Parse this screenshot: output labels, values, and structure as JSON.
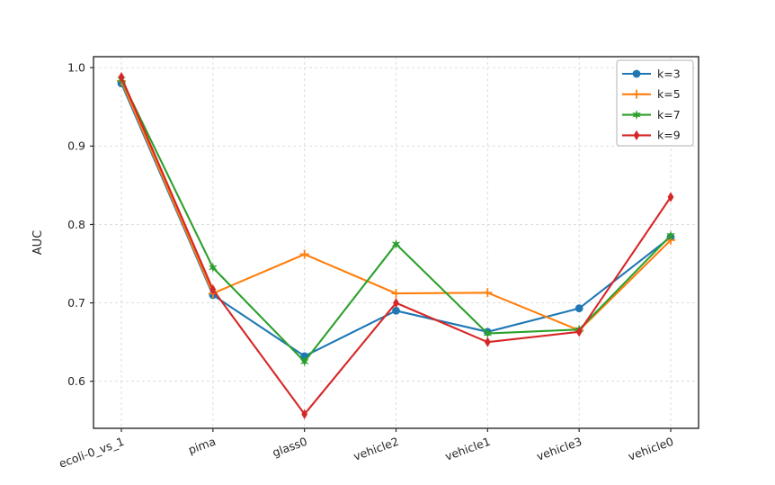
{
  "chart_data": {
    "type": "line",
    "title": "",
    "xlabel": "",
    "ylabel": "AUC",
    "categories": [
      "ecoli-0_vs_1",
      "pima",
      "glass0",
      "vehicle2",
      "vehicle1",
      "vehicle3",
      "vehicle0"
    ],
    "series": [
      {
        "name": "k=3",
        "color": "#1f77b4",
        "marker": "circle",
        "values": [
          0.98,
          0.71,
          0.632,
          0.69,
          0.663,
          0.693,
          0.784
        ]
      },
      {
        "name": "k=5",
        "color": "#ff7f0e",
        "marker": "plus",
        "values": [
          0.983,
          0.712,
          0.762,
          0.712,
          0.713,
          0.665,
          0.78
        ]
      },
      {
        "name": "k=7",
        "color": "#2ca02c",
        "marker": "star",
        "values": [
          0.985,
          0.745,
          0.625,
          0.775,
          0.661,
          0.666,
          0.786
        ]
      },
      {
        "name": "k=9",
        "color": "#d62728",
        "marker": "diamond",
        "values": [
          0.988,
          0.717,
          0.558,
          0.7,
          0.65,
          0.663,
          0.835
        ]
      }
    ],
    "ylim": [
      0.54,
      1.014
    ],
    "yticks": [
      0.6,
      0.7,
      0.8,
      0.9,
      1.0
    ],
    "ytick_labels": [
      "0.6",
      "0.7",
      "0.8",
      "0.9",
      "1.0"
    ],
    "grid": true,
    "grid_style": "dashed",
    "legend_position": "upper-right",
    "legend_labels": [
      "k=3",
      "k=5",
      "k=7",
      "k=9"
    ],
    "x_tick_rotation": -20
  },
  "colors": {
    "background": "#ffffff",
    "axis": "#2b2b2b",
    "tick_text": "#262626",
    "grid": "#d9d9d9",
    "legend_border": "#b3b3b3",
    "legend_background": "#ffffff"
  }
}
